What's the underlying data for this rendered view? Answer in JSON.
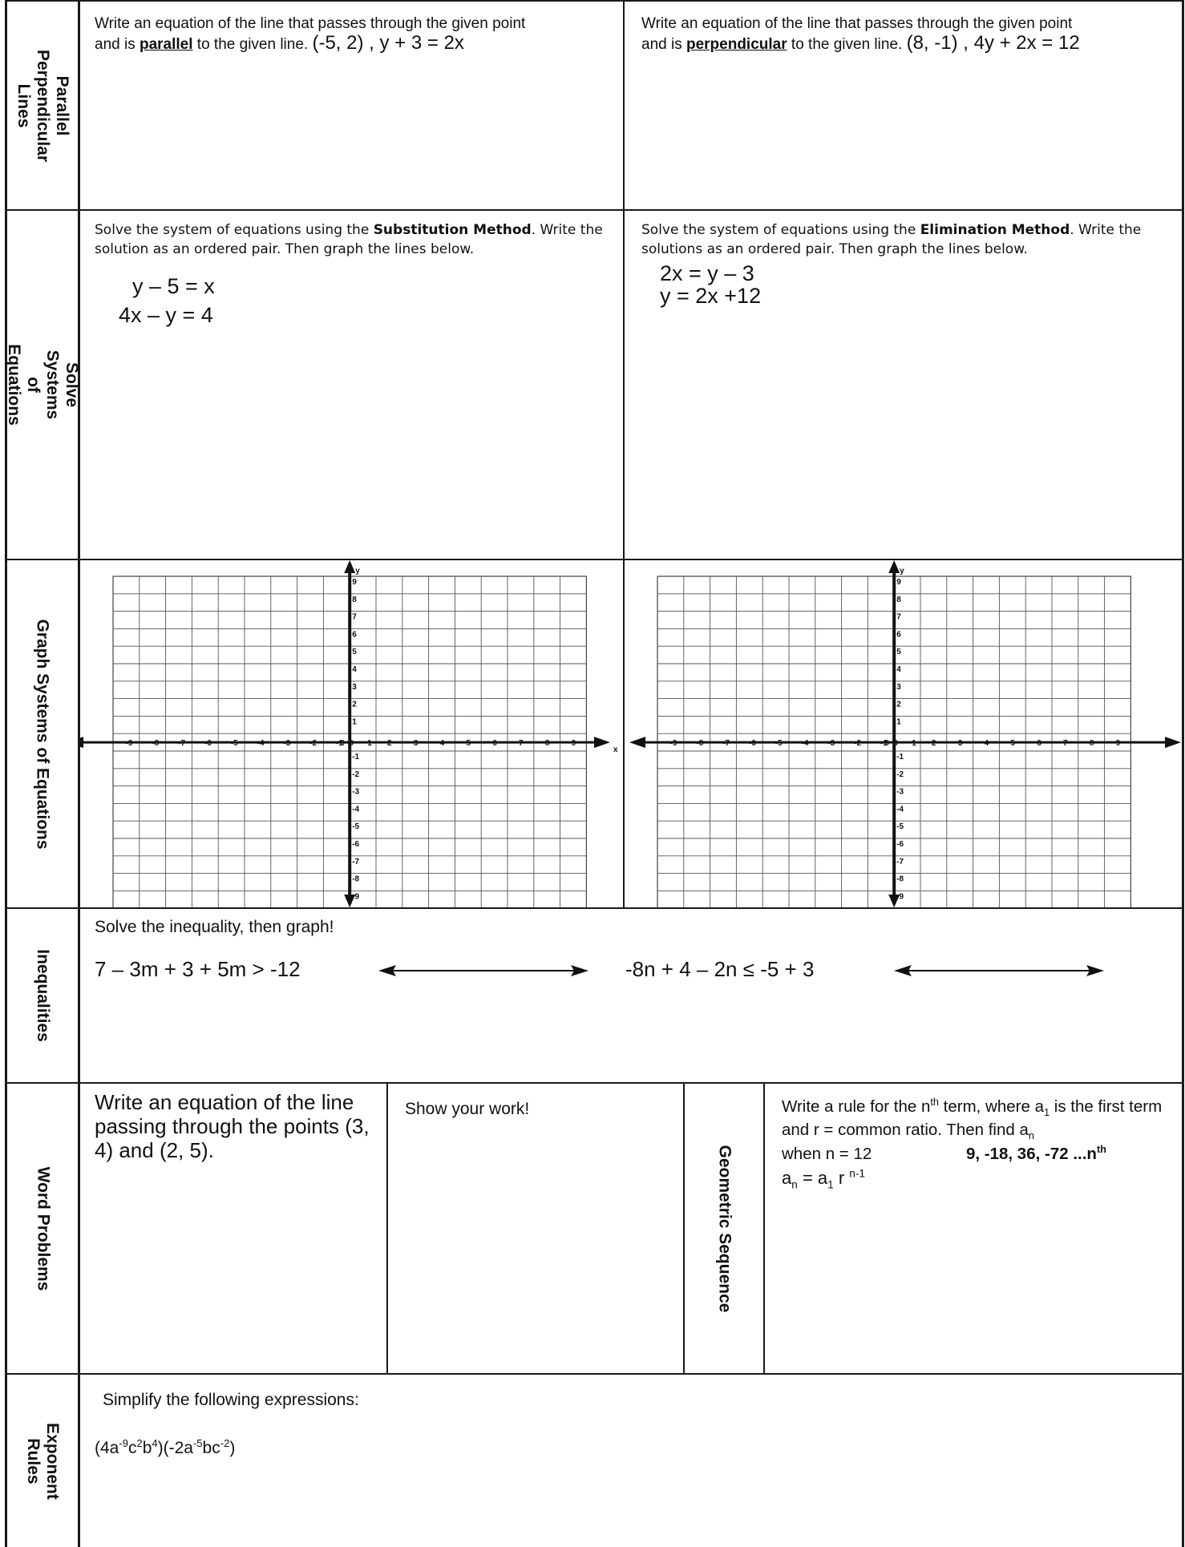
{
  "sections": {
    "parallel": "Parallel Perpendicular Lines",
    "systems": "Solve Systems of Equations",
    "graph": "Graph Systems of Equations",
    "inequalities": "Inequalities",
    "word": "Word Problems",
    "geometric": "Geometric Sequence",
    "exponent": "Exponent Rules"
  },
  "parallel_q": {
    "line1": "Write an equation of the line that passes through the  given point",
    "line2_pre": "and is ",
    "keyword": "parallel",
    "line2_post": " to the given line. ",
    "problem": "(-5, 2) ,    y + 3 = 2x"
  },
  "perpendicular_q": {
    "line1": "Write an equation of the line that passes through the given point",
    "line2_pre": "and is ",
    "keyword": "perpendicular",
    "line2_post": " to the given line. ",
    "problem": "(8, -1) ,  4y + 2x = 12"
  },
  "substitution": {
    "pre": "Solve the system of equations using the ",
    "method": "Substitution Method",
    "post": ". Write the solution as an ordered pair. Then graph the lines below.",
    "eq1": "y – 5 = x",
    "eq2": "4x – y = 4"
  },
  "elimination": {
    "pre": "Solve the system of equations using the  ",
    "method": "Elimination  Method",
    "post": ". Write the solutions as an ordered pair. Then graph the lines below.",
    "eq1": "2x  = y –  3",
    "eq2": "y = 2x +12"
  },
  "graph": {
    "x_ticks": [
      "-9",
      "-8",
      "-7",
      "-6",
      "-5",
      "-4",
      "-3",
      "-2",
      "-1",
      "0",
      "0",
      "1",
      "2",
      "3",
      "4",
      "5",
      "6",
      "7",
      "8",
      "9"
    ],
    "y_ticks": [
      "9",
      "8",
      "7",
      "6",
      "5",
      "4",
      "3",
      "2",
      "1",
      "-1",
      "-2",
      "-3",
      "-4",
      "-5",
      "-6",
      "-7",
      "-8",
      "-9"
    ],
    "x_label": "x",
    "y_label": "y"
  },
  "inequalities": {
    "instruction": "Solve the inequality, then graph!",
    "problem1": "7 – 3m + 3 + 5m > -12",
    "problem2": "-8n + 4 – 2n  ≤  -5 + 3"
  },
  "word": {
    "problem": "Write an equation of the line passing through the points (3, 4) and (2, 5).",
    "work": "Show your work!"
  },
  "geometric": {
    "t1": "Write a rule for the n",
    "t1_sup": "th",
    "t2": " term, where a",
    "t2_sub": "1",
    "t3": " is the first term and r = common ratio. Then find a",
    "t3_sub": "n",
    "when": "when n = 12",
    "sequence": "9, -18, 36, -72  ...n",
    "sequence_sup": "th",
    "formula_a": "a",
    "formula_n": "n",
    "formula_eq": " = a",
    "formula_1": "1",
    "formula_r": " r ",
    "formula_exp": "n-1"
  },
  "exponent": {
    "instruction": "Simplify the following expressions:",
    "p1": "(4a",
    "p1_e": "-9",
    "p2": "c",
    "p2_e": "2",
    "p3": "b",
    "p3_e": "4",
    "p4": ")(-2a",
    "p4_e": "-5",
    "p5": "bc",
    "p5_e": "-2",
    "p6": ")"
  }
}
